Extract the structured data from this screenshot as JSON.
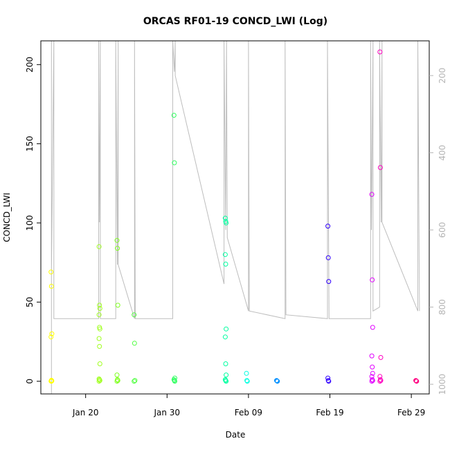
{
  "chart_data": {
    "type": "scatter",
    "title": "ORCAS RF01-19 CONCD_LWI (Log)",
    "xlabel": "Date",
    "ylabel": "CONCD_LWI",
    "x_ticks": [
      {
        "label": "Jan 20",
        "day": 20
      },
      {
        "label": "Jan 30",
        "day": 30
      },
      {
        "label": "Feb 09",
        "day": 40
      },
      {
        "label": "Feb 19",
        "day": 50
      },
      {
        "label": "Feb 29",
        "day": 60
      }
    ],
    "y_ticks": [
      0,
      50,
      100,
      150,
      200
    ],
    "y_right_ticks": [
      200,
      400,
      600,
      800,
      1000
    ],
    "x_range_days": [
      14.5,
      62.2
    ],
    "ylim": [
      -8,
      215
    ],
    "y_right_lim": [
      1025,
      110
    ],
    "flights": [
      {
        "color": "#ffff00",
        "day": 15.8,
        "values": [
          69,
          60,
          30,
          28,
          0.6,
          0.3,
          0.1,
          0
        ]
      },
      {
        "color": "#a0ff20",
        "day": 21.7,
        "values": [
          85,
          48,
          46,
          42,
          34,
          33,
          27,
          22,
          11,
          1.5,
          1,
          0.5,
          0
        ]
      },
      {
        "color": "#80ff20",
        "day": 23.9,
        "values": [
          89,
          84,
          48,
          4,
          1,
          0.5,
          0
        ]
      },
      {
        "color": "#50ff40",
        "day": 26.0,
        "values": [
          42,
          24,
          0.5,
          0
        ]
      },
      {
        "color": "#30ff60",
        "day": 30.9,
        "values": [
          168,
          138,
          2,
          1,
          0.5,
          0
        ]
      },
      {
        "color": "#00ffa0",
        "day": 37.2,
        "values": [
          103,
          101,
          100,
          80,
          74,
          33,
          28,
          11,
          4,
          1,
          0.5,
          0
        ]
      },
      {
        "color": "#00ffe0",
        "day": 39.8,
        "values": [
          5,
          0.5,
          0
        ]
      },
      {
        "color": "#0090ff",
        "day": 43.5,
        "values": [
          0.5,
          0.2,
          0
        ]
      },
      {
        "color": "#3000ff",
        "day": 49.8,
        "values": [
          98,
          78,
          63,
          2,
          0.5,
          0
        ]
      },
      {
        "color": "#e000ff",
        "day": 55.2,
        "values": [
          118,
          64,
          34,
          16,
          9,
          5,
          3,
          1,
          0.5,
          0
        ]
      },
      {
        "color": "#ff00c0",
        "day": 56.2,
        "values": [
          208,
          135,
          15,
          3,
          1,
          0.5,
          0
        ]
      },
      {
        "color": "#ff0080",
        "day": 60.6,
        "values": [
          0.5,
          0.2,
          0
        ]
      }
    ],
    "altitude_trace": [
      [
        15.8,
        1025
      ],
      [
        15.8,
        110
      ],
      [
        15.8,
        830
      ],
      [
        15.8,
        710
      ],
      [
        16.1,
        110
      ],
      [
        16.1,
        830
      ],
      [
        21.6,
        830
      ],
      [
        21.6,
        110
      ],
      [
        21.7,
        580
      ],
      [
        21.8,
        110
      ],
      [
        21.8,
        830
      ],
      [
        23.7,
        830
      ],
      [
        23.7,
        110
      ],
      [
        23.9,
        690
      ],
      [
        24.0,
        110
      ],
      [
        24.0,
        690
      ],
      [
        26.0,
        830
      ],
      [
        26.0,
        110
      ],
      [
        26.1,
        830
      ],
      [
        30.7,
        830
      ],
      [
        30.7,
        110
      ],
      [
        30.9,
        190
      ],
      [
        31.0,
        110
      ],
      [
        31.0,
        200
      ],
      [
        37.0,
        740
      ],
      [
        37.0,
        110
      ],
      [
        37.2,
        600
      ],
      [
        37.3,
        110
      ],
      [
        37.4,
        620
      ],
      [
        40.0,
        810
      ],
      [
        40.0,
        110
      ],
      [
        40.1,
        810
      ],
      [
        44.5,
        830
      ],
      [
        44.5,
        110
      ],
      [
        44.6,
        820
      ],
      [
        49.7,
        830
      ],
      [
        49.7,
        110
      ],
      [
        49.9,
        830
      ],
      [
        55.0,
        830
      ],
      [
        55.0,
        110
      ],
      [
        55.1,
        600
      ],
      [
        55.3,
        110
      ],
      [
        55.3,
        810
      ],
      [
        56.1,
        800
      ],
      [
        56.1,
        110
      ],
      [
        56.3,
        580
      ],
      [
        56.4,
        110
      ],
      [
        56.4,
        580
      ],
      [
        60.8,
        810
      ],
      [
        60.8,
        110
      ],
      [
        61.0,
        810
      ]
    ]
  }
}
